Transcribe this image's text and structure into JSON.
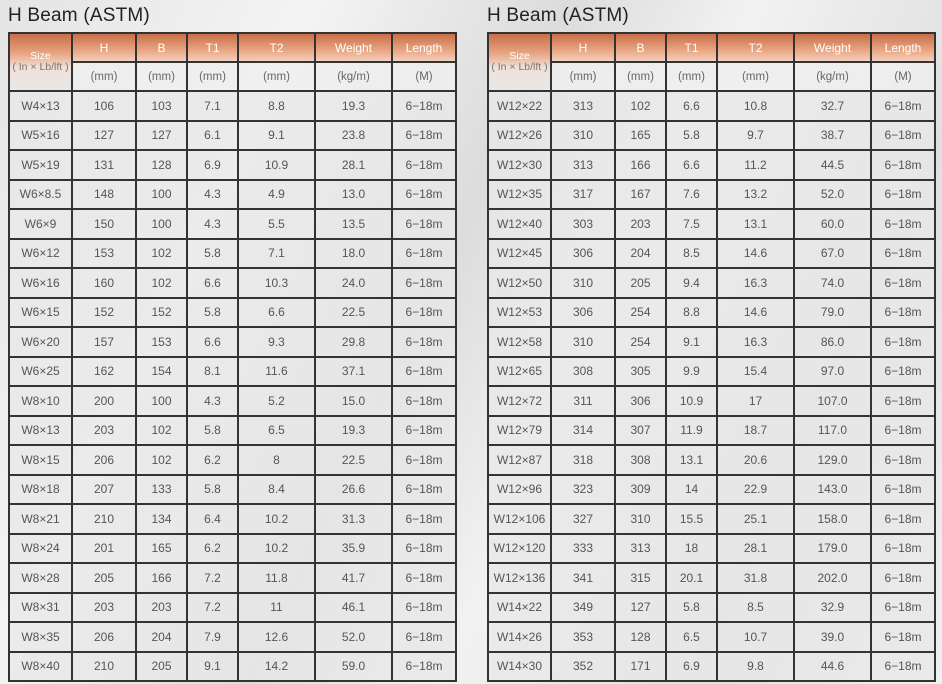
{
  "headers": {
    "size": "Size",
    "size_unit": "( In × Lb/lft )",
    "cols": [
      "H",
      "B",
      "T1",
      "T2",
      "Weight",
      "Length"
    ],
    "units": [
      "(mm)",
      "(mm)",
      "(mm)",
      "(mm)",
      "(kg/m)",
      "(M)"
    ]
  },
  "colors": {
    "header_accent": "#c86f48"
  },
  "tables": [
    {
      "title": "H Beam (ASTM)",
      "rows": [
        [
          "W4×13",
          "106",
          "103",
          "7.1",
          "8.8",
          "19.3",
          "6−18m"
        ],
        [
          "W5×16",
          "127",
          "127",
          "6.1",
          "9.1",
          "23.8",
          "6−18m"
        ],
        [
          "W5×19",
          "131",
          "128",
          "6.9",
          "10.9",
          "28.1",
          "6−18m"
        ],
        [
          "W6×8.5",
          "148",
          "100",
          "4.3",
          "4.9",
          "13.0",
          "6−18m"
        ],
        [
          "W6×9",
          "150",
          "100",
          "4.3",
          "5.5",
          "13.5",
          "6−18m"
        ],
        [
          "W6×12",
          "153",
          "102",
          "5.8",
          "7.1",
          "18.0",
          "6−18m"
        ],
        [
          "W6×16",
          "160",
          "102",
          "6.6",
          "10.3",
          "24.0",
          "6−18m"
        ],
        [
          "W6×15",
          "152",
          "152",
          "5.8",
          "6.6",
          "22.5",
          "6−18m"
        ],
        [
          "W6×20",
          "157",
          "153",
          "6.6",
          "9.3",
          "29.8",
          "6−18m"
        ],
        [
          "W6×25",
          "162",
          "154",
          "8.1",
          "11.6",
          "37.1",
          "6−18m"
        ],
        [
          "W8×10",
          "200",
          "100",
          "4.3",
          "5.2",
          "15.0",
          "6−18m"
        ],
        [
          "W8×13",
          "203",
          "102",
          "5.8",
          "6.5",
          "19.3",
          "6−18m"
        ],
        [
          "W8×15",
          "206",
          "102",
          "6.2",
          "8",
          "22.5",
          "6−18m"
        ],
        [
          "W8×18",
          "207",
          "133",
          "5.8",
          "8.4",
          "26.6",
          "6−18m"
        ],
        [
          "W8×21",
          "210",
          "134",
          "6.4",
          "10.2",
          "31.3",
          "6−18m"
        ],
        [
          "W8×24",
          "201",
          "165",
          "6.2",
          "10.2",
          "35.9",
          "6−18m"
        ],
        [
          "W8×28",
          "205",
          "166",
          "7.2",
          "11.8",
          "41.7",
          "6−18m"
        ],
        [
          "W8×31",
          "203",
          "203",
          "7.2",
          "11",
          "46.1",
          "6−18m"
        ],
        [
          "W8×35",
          "206",
          "204",
          "7.9",
          "12.6",
          "52.0",
          "6−18m"
        ],
        [
          "W8×40",
          "210",
          "205",
          "9.1",
          "14.2",
          "59.0",
          "6−18m"
        ]
      ]
    },
    {
      "title": "H Beam (ASTM)",
      "rows": [
        [
          "W12×22",
          "313",
          "102",
          "6.6",
          "10.8",
          "32.7",
          "6−18m"
        ],
        [
          "W12×26",
          "310",
          "165",
          "5.8",
          "9.7",
          "38.7",
          "6−18m"
        ],
        [
          "W12×30",
          "313",
          "166",
          "6.6",
          "11.2",
          "44.5",
          "6−18m"
        ],
        [
          "W12×35",
          "317",
          "167",
          "7.6",
          "13.2",
          "52.0",
          "6−18m"
        ],
        [
          "W12×40",
          "303",
          "203",
          "7.5",
          "13.1",
          "60.0",
          "6−18m"
        ],
        [
          "W12×45",
          "306",
          "204",
          "8.5",
          "14.6",
          "67.0",
          "6−18m"
        ],
        [
          "W12×50",
          "310",
          "205",
          "9.4",
          "16.3",
          "74.0",
          "6−18m"
        ],
        [
          "W12×53",
          "306",
          "254",
          "8.8",
          "14.6",
          "79.0",
          "6−18m"
        ],
        [
          "W12×58",
          "310",
          "254",
          "9.1",
          "16.3",
          "86.0",
          "6−18m"
        ],
        [
          "W12×65",
          "308",
          "305",
          "9.9",
          "15.4",
          "97.0",
          "6−18m"
        ],
        [
          "W12×72",
          "311",
          "306",
          "10.9",
          "17",
          "107.0",
          "6−18m"
        ],
        [
          "W12×79",
          "314",
          "307",
          "11.9",
          "18.7",
          "117.0",
          "6−18m"
        ],
        [
          "W12×87",
          "318",
          "308",
          "13.1",
          "20.6",
          "129.0",
          "6−18m"
        ],
        [
          "W12×96",
          "323",
          "309",
          "14",
          "22.9",
          "143.0",
          "6−18m"
        ],
        [
          "W12×106",
          "327",
          "310",
          "15.5",
          "25.1",
          "158.0",
          "6−18m"
        ],
        [
          "W12×120",
          "333",
          "313",
          "18",
          "28.1",
          "179.0",
          "6−18m"
        ],
        [
          "W12×136",
          "341",
          "315",
          "20.1",
          "31.8",
          "202.0",
          "6−18m"
        ],
        [
          "W14×22",
          "349",
          "127",
          "5.8",
          "8.5",
          "32.9",
          "6−18m"
        ],
        [
          "W14×26",
          "353",
          "128",
          "6.5",
          "10.7",
          "39.0",
          "6−18m"
        ],
        [
          "W14×30",
          "352",
          "171",
          "6.9",
          "9.8",
          "44.6",
          "6−18m"
        ]
      ]
    }
  ]
}
